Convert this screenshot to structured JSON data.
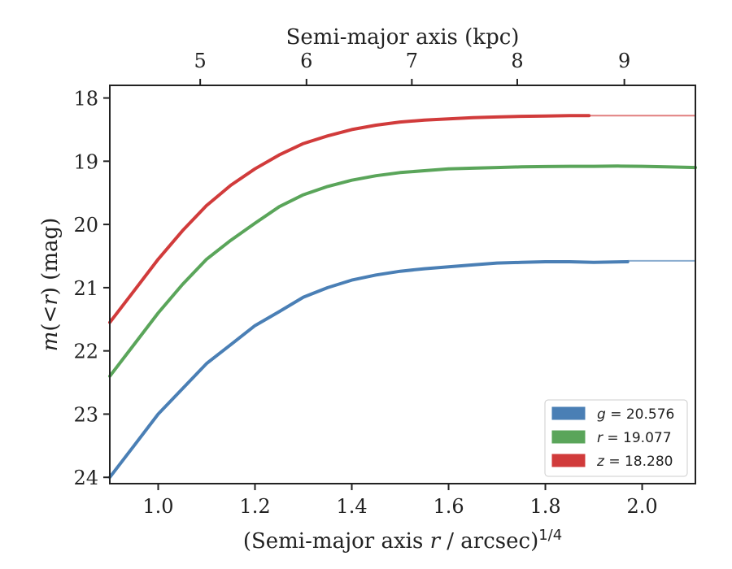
{
  "chart_data": {
    "type": "line",
    "xlabel_prefix": "(Semi-major axis ",
    "xlabel_var": "r",
    "xlabel_mid": " / arcsec)",
    "xlabel_exp": "1/4",
    "ylabel_var": "m",
    "ylabel_mid": "(<",
    "ylabel_var2": "r",
    "ylabel_suffix": ") (mag)",
    "top_xlabel": "Semi-major axis (kpc)",
    "xlim": [
      0.9,
      2.11
    ],
    "ylim": [
      24.1,
      17.8
    ],
    "x_ticks": [
      1.0,
      1.2,
      1.4,
      1.6,
      1.8,
      2.0
    ],
    "x_tick_labels": [
      "1.0",
      "1.2",
      "1.4",
      "1.6",
      "1.8",
      "2.0"
    ],
    "y_ticks": [
      18,
      19,
      20,
      21,
      22,
      23,
      24
    ],
    "y_tick_labels": [
      "18",
      "19",
      "20",
      "21",
      "22",
      "23",
      "24"
    ],
    "top_ticks": [
      5,
      6,
      7,
      8,
      9
    ],
    "top_tick_labels": [
      "5",
      "6",
      "7",
      "8",
      "9"
    ],
    "top_tick_positions_x": [
      1.0868,
      1.3064,
      1.5241,
      1.7419,
      1.9632
    ],
    "grid": false,
    "legend_position": "bottom-right",
    "series": [
      {
        "name": "g",
        "label_var": "g",
        "label_value": " = 20.576",
        "color": "#4a7fb5",
        "x": [
          0.9,
          0.95,
          1.0,
          1.05,
          1.1,
          1.15,
          1.2,
          1.25,
          1.3,
          1.35,
          1.4,
          1.45,
          1.5,
          1.55,
          1.6,
          1.65,
          1.7,
          1.75,
          1.8,
          1.85,
          1.9,
          1.97
        ],
        "y": [
          24.0,
          23.5,
          23.0,
          22.6,
          22.2,
          21.9,
          21.6,
          21.38,
          21.15,
          21.0,
          20.88,
          20.8,
          20.74,
          20.7,
          20.67,
          20.64,
          20.61,
          20.6,
          20.59,
          20.59,
          20.6,
          20.59
        ],
        "extension_x": [
          1.97,
          2.11
        ],
        "extension_y": [
          20.576,
          20.576
        ]
      },
      {
        "name": "r",
        "label_var": "r",
        "label_value": " = 19.077",
        "color": "#5aa55a",
        "x": [
          0.9,
          0.95,
          1.0,
          1.05,
          1.1,
          1.15,
          1.2,
          1.25,
          1.3,
          1.35,
          1.4,
          1.45,
          1.5,
          1.55,
          1.6,
          1.65,
          1.7,
          1.75,
          1.8,
          1.85,
          1.9,
          1.95,
          2.0,
          2.05,
          2.11
        ],
        "y": [
          22.4,
          21.9,
          21.4,
          20.95,
          20.55,
          20.25,
          19.98,
          19.72,
          19.53,
          19.4,
          19.3,
          19.23,
          19.18,
          19.15,
          19.12,
          19.11,
          19.1,
          19.09,
          19.085,
          19.08,
          19.08,
          19.077,
          19.08,
          19.09,
          19.1
        ]
      },
      {
        "name": "z",
        "label_var": "z",
        "label_value": " = 18.280",
        "color": "#d13b3b",
        "x": [
          0.9,
          0.95,
          1.0,
          1.05,
          1.1,
          1.15,
          1.2,
          1.25,
          1.3,
          1.35,
          1.4,
          1.45,
          1.5,
          1.55,
          1.6,
          1.65,
          1.7,
          1.75,
          1.8,
          1.85,
          1.89
        ],
        "y": [
          21.55,
          21.05,
          20.55,
          20.1,
          19.7,
          19.38,
          19.12,
          18.9,
          18.72,
          18.6,
          18.5,
          18.43,
          18.38,
          18.35,
          18.33,
          18.31,
          18.3,
          18.29,
          18.285,
          18.28,
          18.28
        ],
        "extension_x": [
          1.89,
          2.11
        ],
        "extension_y": [
          18.28,
          18.28
        ]
      }
    ]
  }
}
